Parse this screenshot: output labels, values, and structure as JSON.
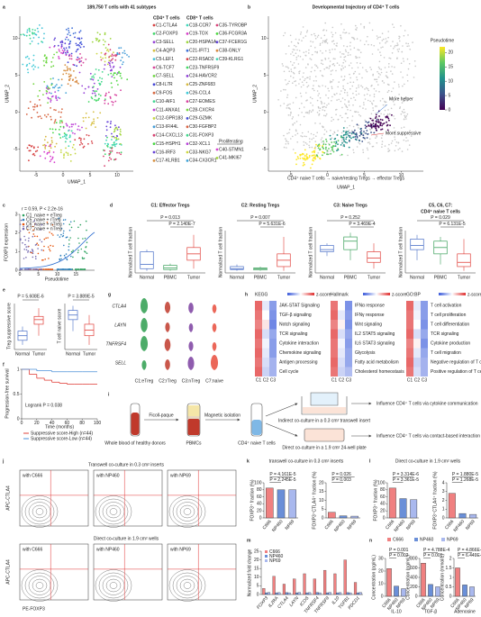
{
  "a": {
    "letter": "a",
    "title": "189,750 T cells with 41 subtypes",
    "xlabel": "UMAP_1",
    "ylabel": "UMAP_2",
    "xlim": [
      -8,
      13
    ],
    "xticks": [
      -5,
      0,
      5,
      10
    ],
    "ylim": [
      -8,
      13
    ],
    "yticks": [
      -5,
      0,
      5,
      10
    ],
    "cd4_header": "CD4⁺ T cells",
    "cd8_header": "CD8⁺ T cells",
    "prolif_header": "Proliferating",
    "cd4": [
      "C1-CTLA4",
      "C2-FOXP3",
      "C3-SELL",
      "C4-AQP3",
      "C5-LEF1",
      "C6-TCF7",
      "C7-SELL",
      "C8-IL7R",
      "C9-FOS",
      "C10-AIF1",
      "C11-ANXA1",
      "C12-GPR183",
      "C13-IFI44L",
      "C14-CXCL13",
      "C15-HSPH1",
      "C16-IRF3",
      "C17-KLRB1"
    ],
    "cd8": [
      "C18-CCR7",
      "C19-TOX",
      "C20-HSPA1A",
      "C21-IFIT1",
      "C22-RSAD2",
      "C23-TNFRSF9",
      "C24-HAVCR2",
      "C25-ZNF683",
      "C26-CCL4",
      "C27-EOMES",
      "C28-CXCR4",
      "C29-GZMK",
      "C30-FGFBP2",
      "C31-FOXP3",
      "C32-XCL1",
      "C33-NKG7",
      "C34-CX3CR1",
      "C35-TYROBP",
      "C36-FCGR3A",
      "C37-FCER1G",
      "C38-GNLY",
      "C39-KLRG1"
    ],
    "prolif": [
      "C40-STMN1",
      "C41-MKI67"
    ]
  },
  "b": {
    "letter": "b",
    "title": "Developmental trajectory of CD4⁺ T cells",
    "xlabel": "UMAP_1",
    "ylabel": "UMAP_2",
    "xlim": [
      -8,
      13
    ],
    "xticks": [
      -5,
      0,
      5,
      10
    ],
    "ylim": [
      -8,
      13
    ],
    "yticks": [
      -5,
      0,
      5,
      10
    ],
    "legend_title": "Pseudotime",
    "legend_lim": [
      0,
      22
    ],
    "legend_ticks": [
      0,
      5,
      10,
      15,
      20
    ],
    "note_helper": "More helper",
    "note_suppressive": "More suppressive",
    "path_label": "CD4⁺ naive T cells → naive/resting Tregs → effector Tregs"
  },
  "c": {
    "letter": "c",
    "stat": "r = 0.59, P < 2.2e-16",
    "ylabel": "FOXP3 expression",
    "xlabel": "Pseudotime",
    "xlim": [
      0,
      20
    ],
    "xticks": [
      0,
      5,
      10,
      15
    ],
    "ylim": [
      0,
      3
    ],
    "yticks": [
      0,
      1,
      2,
      3
    ],
    "series": [
      {
        "name": "C1_naive + eTreg",
        "color": "#2ca25f"
      },
      {
        "name": "C5_naive + rTreg",
        "color": "#3182bd"
      },
      {
        "name": "C6_naive + nTreg",
        "color": "#e6550d"
      },
      {
        "name": "C7_naive + nTreg",
        "color": "#756bb1"
      }
    ]
  },
  "d": {
    "letter": "d",
    "ylabel": "Normalized T cell fraction",
    "groups": [
      "Normal",
      "PBMC",
      "Tumor"
    ],
    "colors": [
      "#4a6fc7",
      "#3aa05a",
      "#e0403a"
    ],
    "ylim": [
      0,
      1
    ],
    "panels": [
      {
        "title": "C1: Effector Tregs",
        "title2": "",
        "p_top": "P = 0.013",
        "p_bottom": "P = 2.140E-7",
        "boxes": [
          [
            0.05,
            0.1,
            0.2,
            0.5,
            0.55
          ],
          [
            0.05,
            0.08,
            0.12,
            0.18,
            0.22
          ],
          [
            0.1,
            0.3,
            0.45,
            0.6,
            0.9
          ]
        ]
      },
      {
        "title": "C2: Resting Tregs",
        "title2": "",
        "p_top": "P = 0.007",
        "p_bottom": "P = 5.631E-6",
        "boxes": [
          [
            0.05,
            0.08,
            0.1,
            0.15,
            0.2
          ],
          [
            0.05,
            0.07,
            0.1,
            0.12,
            0.15
          ],
          [
            0.05,
            0.15,
            0.3,
            0.45,
            0.85
          ]
        ]
      },
      {
        "title": "C3: Naive Tregs",
        "title2": "",
        "p_top": "P = 0.252",
        "p_bottom": "P = 3.469E-4",
        "boxes": [
          [
            0.4,
            0.5,
            0.55,
            0.65,
            0.7
          ],
          [
            0.3,
            0.55,
            0.75,
            0.85,
            0.95
          ],
          [
            0.1,
            0.25,
            0.35,
            0.5,
            0.7
          ]
        ]
      },
      {
        "title": "C5, C6, C7:",
        "title2": "CD4⁺ naive T cells",
        "p_top": "P = 0.029",
        "p_bottom": "P = 6.131E-5",
        "boxes": [
          [
            0.3,
            0.55,
            0.65,
            0.8,
            0.9
          ],
          [
            0.2,
            0.45,
            0.6,
            0.75,
            0.85
          ],
          [
            0.05,
            0.15,
            0.25,
            0.45,
            0.8
          ]
        ]
      }
    ]
  },
  "e": {
    "letter": "e",
    "groups": [
      "Normal",
      "Tumor"
    ],
    "colors": [
      "#4a6fc7",
      "#e0403a"
    ],
    "ylim": [
      0,
      1
    ],
    "panels": [
      {
        "ylabel": "Treg suppressive score",
        "p": "P = 5.608E-6",
        "boxes": [
          [
            0.1,
            0.2,
            0.3,
            0.4,
            0.5
          ],
          [
            0.3,
            0.55,
            0.65,
            0.72,
            0.9
          ]
        ]
      },
      {
        "ylabel": "T cell naive score",
        "p": "P = 3.889E-5",
        "boxes": [
          [
            0.4,
            0.65,
            0.75,
            0.85,
            0.95
          ],
          [
            0.1,
            0.3,
            0.42,
            0.55,
            0.75
          ]
        ]
      }
    ]
  },
  "f": {
    "letter": "f",
    "ylabel": "Progression-free survival",
    "xlabel": "Time (months)",
    "stat": "Logrank P = 0.038",
    "xlim": [
      0,
      100
    ],
    "xticks": [
      0,
      20,
      40,
      60,
      80,
      100
    ],
    "ylim": [
      0,
      1
    ],
    "yticks": [
      0,
      0.5,
      1
    ],
    "series": [
      {
        "name": "Suppressive score-High (n=44)",
        "color": "#e0403a",
        "x": [
          0,
          10,
          20,
          30,
          40,
          50,
          60,
          70,
          80,
          90
        ],
        "y": [
          1,
          0.9,
          0.82,
          0.78,
          0.74,
          0.72,
          0.7,
          0.7,
          0.7,
          0.7
        ]
      },
      {
        "name": "Suppressive score-Low (n=44)",
        "color": "#4a8fd8",
        "x": [
          0,
          20,
          40,
          60,
          80,
          100
        ],
        "y": [
          1,
          0.97,
          0.95,
          0.95,
          0.95,
          0.95
        ]
      }
    ]
  },
  "g": {
    "letter": "g",
    "genes": [
      "CTLA4",
      "LAYN",
      "TNFRSF4",
      "SELL"
    ],
    "clusters": [
      "C1:eTreg",
      "C2:rTreg",
      "C3:nTreg",
      "C7:naive"
    ],
    "colors": [
      "#2e9e4f",
      "#c0392b",
      "#7b3fa0",
      "#e74c3c"
    ]
  },
  "h": {
    "letter": "h",
    "legend": "z-score",
    "zlim": [
      -1.5,
      1.5
    ],
    "columns": [
      "C1",
      "C2",
      "C3"
    ],
    "panels": [
      {
        "title": "KEGG",
        "rows": [
          "JAK-STAT Signaling",
          "TGF-β signaling",
          "Notch signaling",
          "TCR signaling",
          "Cytokine interaction",
          "Chemokine signaling",
          "Antigen processing",
          "Cell cycle"
        ],
        "z": [
          [
            1.1,
            -0.2,
            -0.9
          ],
          [
            1.0,
            0.0,
            -1.0
          ],
          [
            0.9,
            0.2,
            -1.1
          ],
          [
            1.1,
            -0.3,
            -0.8
          ],
          [
            1.0,
            -0.1,
            -0.9
          ],
          [
            1.1,
            -0.2,
            -0.9
          ],
          [
            1.0,
            -0.3,
            -0.7
          ],
          [
            1.1,
            -0.4,
            -0.7
          ]
        ]
      },
      {
        "title": "Hallmark",
        "rows": [
          "IFNα response",
          "IFNγ response",
          "Wnt signaling",
          "IL2 STAT5 signaling",
          "IL6 STAT3 signaling",
          "Glycolysis",
          "Fatty acid metabolism",
          "Cholesterol homeostasis"
        ],
        "z": [
          [
            1.0,
            0.0,
            -1.0
          ],
          [
            1.1,
            -0.2,
            -0.9
          ],
          [
            0.9,
            0.1,
            -1.0
          ],
          [
            1.1,
            -0.3,
            -0.8
          ],
          [
            1.0,
            -0.1,
            -0.9
          ],
          [
            1.0,
            -0.2,
            -0.8
          ],
          [
            1.1,
            -0.3,
            -0.8
          ],
          [
            1.0,
            -0.4,
            -0.6
          ]
        ]
      },
      {
        "title": "GO:BP",
        "rows": [
          "T cell activation",
          "T cell proliferation",
          "T cell differentiation",
          "TCR signaling",
          "Cytokine production",
          "T cell migration",
          "Negative regulation of T cell proliferation",
          "Positive regulation of T cell apoptosis"
        ],
        "z": [
          [
            1.1,
            -0.2,
            -0.9
          ],
          [
            1.0,
            -0.1,
            -0.9
          ],
          [
            1.0,
            0.0,
            -1.0
          ],
          [
            1.1,
            -0.3,
            -0.8
          ],
          [
            0.9,
            0.1,
            -1.0
          ],
          [
            1.0,
            -0.2,
            -0.8
          ],
          [
            1.1,
            -0.4,
            -0.7
          ],
          [
            1.0,
            -0.3,
            -0.7
          ]
        ]
      }
    ]
  },
  "i": {
    "letter": "i",
    "blood": "Whole blood of healthy donors",
    "ficoll": "Ficoll-paque",
    "pbmc": "PBMCs",
    "magnetic": "Magnetic isolation",
    "naive": "CD4⁺ naive T cells",
    "indirect": "Indirect co-culture in a 0.3 cm² transwell insert",
    "direct": "Direct co-culture in a 1.9 cm² 24-well plate",
    "cytokine": "Influence CD4⁺ T cells via cytokine communication",
    "contact": "Influence CD4⁺ T cells via contact-based interaction"
  },
  "j": {
    "letter": "j",
    "title_transwell": "Transwell co-culture in 0.3 cm² inserts",
    "title_direct": "Direct co-culture in 1.9 cm² wells",
    "samples": [
      "with C666",
      "with NP460",
      "with NP69"
    ],
    "ylabel": "APC-CTLA4",
    "xlabel": "PE-FOXP3"
  },
  "groups": [
    "C666",
    "NP460",
    "NP69"
  ],
  "group_colors": [
    "#f08080",
    "#6a8fd8",
    "#a9b8ee"
  ],
  "k": {
    "letter": "k",
    "title": "transwell co-culture in 0.3 cm² inserts",
    "charts": [
      {
        "ylabel": "FOXP3⁺ fraction (%)",
        "values": [
          85,
          80,
          80
        ],
        "ylim": [
          0,
          100
        ],
        "yticks": [
          0,
          20,
          40,
          60,
          80,
          100
        ],
        "p": [
          "P = 2.245E-5",
          "P = 4.161E-5"
        ]
      },
      {
        "ylabel": "FOXP3⁺CTLA4⁺ fraction (%)",
        "values": [
          3.2,
          1.2,
          1.0
        ],
        "ylim": [
          0,
          20
        ],
        "yticks": [
          0,
          5,
          10,
          15,
          20
        ],
        "p": [
          "P = 0.003",
          "P = 0.026"
        ]
      }
    ]
  },
  "l": {
    "letter": "l",
    "title": "Direct co-culture in 1.9 cm² wells",
    "charts": [
      {
        "ylabel": "FOXP3⁺ fraction (%)",
        "values": [
          85,
          55,
          52
        ],
        "ylim": [
          0,
          100
        ],
        "yticks": [
          0,
          20,
          40,
          60,
          80,
          100
        ],
        "p": [
          "P = 3.361E-5",
          "P = 3.314E-6"
        ]
      },
      {
        "ylabel": "FOXP3⁺CTLA4⁺ fraction (%)",
        "values": [
          2.8,
          0.5,
          0.4
        ],
        "ylim": [
          0,
          4
        ],
        "yticks": [
          0,
          1,
          2,
          3,
          4
        ],
        "p": [
          "P = 1.268E-5",
          "P = 1.880E-5"
        ]
      }
    ]
  },
  "m": {
    "letter": "m",
    "ylabel": "Normalized fold change",
    "categories": [
      "FOXP3",
      "IL2RA",
      "CTLA4",
      "LAYN",
      "ICOS",
      "TNFRSF4",
      "TNFRSF9",
      "IL10",
      "TGFB1",
      "PDCD1"
    ],
    "ylim": [
      0,
      25
    ],
    "yticks": [
      0,
      5,
      10,
      15,
      20,
      25
    ],
    "values": [
      [
        3.5,
        10.5,
        6,
        9,
        12,
        9,
        14,
        12,
        20,
        7
      ],
      [
        1,
        1,
        1.1,
        1,
        1,
        1.2,
        1,
        1,
        1.1,
        1
      ],
      [
        1.2,
        1.1,
        1,
        1.2,
        1.1,
        1,
        1.2,
        1.1,
        1,
        1.2
      ]
    ]
  },
  "n": {
    "letter": "n",
    "charts": [
      {
        "title": "IL-10",
        "ylabel": "Concentration (pg/mL)",
        "values": [
          22,
          8,
          6
        ],
        "ylim": [
          0,
          30
        ],
        "yticks": [
          0,
          10,
          20,
          30
        ],
        "p": [
          "P = 0.002",
          "P = 0.001"
        ]
      },
      {
        "title": "TGF-β",
        "ylabel": "Concentration (pg/mL)",
        "values": [
          700,
          250,
          200
        ],
        "ylim": [
          0,
          800
        ],
        "yticks": [
          0,
          200,
          400,
          600,
          800
        ],
        "p": [
          "P = 0.001",
          "P = 4.788E-4"
        ]
      },
      {
        "title": "Adenosine",
        "ylabel": "Concentration (mmol/L)",
        "values": [
          1.5,
          0.6,
          0.5
        ],
        "ylim": [
          0,
          2
        ],
        "yticks": [
          0,
          0.5,
          1,
          1.5,
          2
        ],
        "p": [
          "P = 6.449E-5",
          "P = 4.866E-5"
        ]
      }
    ]
  }
}
